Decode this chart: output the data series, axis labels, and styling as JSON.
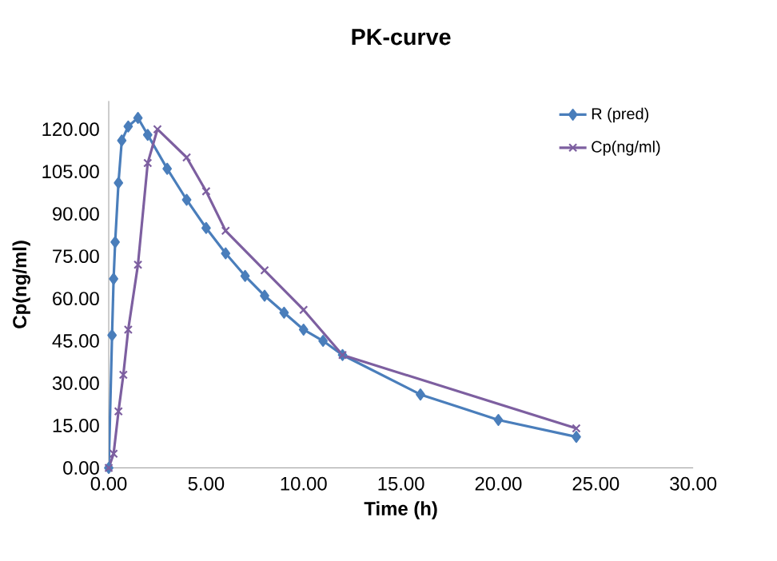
{
  "chart_data": {
    "type": "line",
    "title": "PK-curve",
    "xlabel": "Time (h)",
    "ylabel": "Cp(ng/ml)",
    "xlim": [
      0,
      30
    ],
    "xticks": [
      {
        "value": 0,
        "label": "0.00"
      },
      {
        "value": 5,
        "label": "5.00"
      },
      {
        "value": 10,
        "label": "10.00"
      },
      {
        "value": 15,
        "label": "15.00"
      },
      {
        "value": 20,
        "label": "20.00"
      },
      {
        "value": 25,
        "label": "25.00"
      },
      {
        "value": 30,
        "label": "30.00"
      }
    ],
    "ylim": [
      0,
      130
    ],
    "yticks": [
      {
        "value": 0,
        "label": "0.00"
      },
      {
        "value": 15,
        "label": "15.00"
      },
      {
        "value": 30,
        "label": "30.00"
      },
      {
        "value": 45,
        "label": "45.00"
      },
      {
        "value": 60,
        "label": "60.00"
      },
      {
        "value": 75,
        "label": "75.00"
      },
      {
        "value": 90,
        "label": "90.00"
      },
      {
        "value": 105,
        "label": "105.00"
      },
      {
        "value": 120,
        "label": "120.00"
      }
    ],
    "legend": "right",
    "grid": false,
    "series": [
      {
        "name": "R (pred)",
        "color": "#4a7ebb",
        "marker": "diamond",
        "x": [
          0,
          0.17,
          0.25,
          0.33,
          0.5,
          0.67,
          1,
          1.5,
          2,
          3,
          4,
          5,
          6,
          7,
          8,
          9,
          10,
          11,
          12,
          16,
          20,
          24
        ],
        "values": [
          0,
          47,
          67,
          80,
          101,
          116,
          121,
          124,
          118,
          106,
          95,
          85,
          76,
          68,
          61,
          55,
          49,
          45,
          40,
          26,
          17,
          11
        ]
      },
      {
        "name": "Cp(ng/ml)",
        "color": "#7d5fa0",
        "marker": "cross",
        "x": [
          0,
          0.25,
          0.5,
          0.75,
          1,
          1.5,
          2,
          2.5,
          4,
          5,
          6,
          8,
          10,
          12,
          24
        ],
        "values": [
          0,
          5,
          20,
          33,
          49,
          72,
          108,
          120,
          110,
          98,
          84,
          70,
          56,
          40,
          14
        ]
      }
    ]
  }
}
